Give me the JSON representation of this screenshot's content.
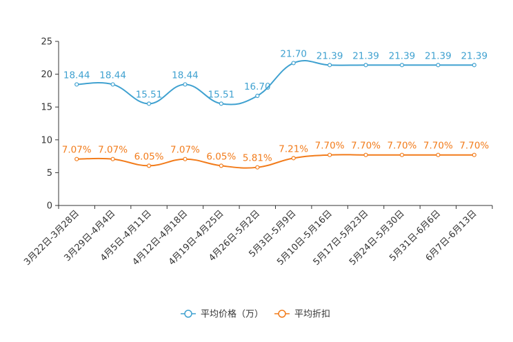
{
  "chart_data": {
    "type": "line",
    "title": "",
    "xlabel": "",
    "ylabel": "",
    "ylim": [
      0,
      25
    ],
    "yticks": [
      0,
      5,
      10,
      15,
      20,
      25
    ],
    "grid": false,
    "legend_position": "bottom-center",
    "categories": [
      "3月22日-3月28日",
      "3月29日-4月4日",
      "4月5日-4月11日",
      "4月12日-4月18日",
      "4月19日-4月25日",
      "4月26日-5月2日",
      "5月3日-5月9日",
      "5月10日-5月16日",
      "5月17日-5月23日",
      "5月24日-5月30日",
      "5月31日-6月6日",
      "6月7日-6月13日"
    ],
    "series": [
      {
        "name": "平均价格（万）",
        "color": "#3fa1d0",
        "values": [
          18.44,
          18.44,
          15.51,
          18.44,
          15.51,
          16.7,
          21.7,
          21.39,
          21.39,
          21.39,
          21.39,
          21.39
        ],
        "labels": [
          "18.44",
          "18.44",
          "15.51",
          "18.44",
          "15.51",
          "16.70",
          "21.70",
          "21.39",
          "21.39",
          "21.39",
          "21.39",
          "21.39"
        ]
      },
      {
        "name": "平均折扣",
        "color": "#f27b1a",
        "values": [
          7.07,
          7.07,
          6.05,
          7.07,
          6.05,
          5.81,
          7.21,
          7.7,
          7.7,
          7.7,
          7.7,
          7.7
        ],
        "labels": [
          "7.07%",
          "7.07%",
          "6.05%",
          "7.07%",
          "6.05%",
          "5.81%",
          "7.21%",
          "7.70%",
          "7.70%",
          "7.70%",
          "7.70%",
          "7.70%"
        ]
      }
    ]
  }
}
